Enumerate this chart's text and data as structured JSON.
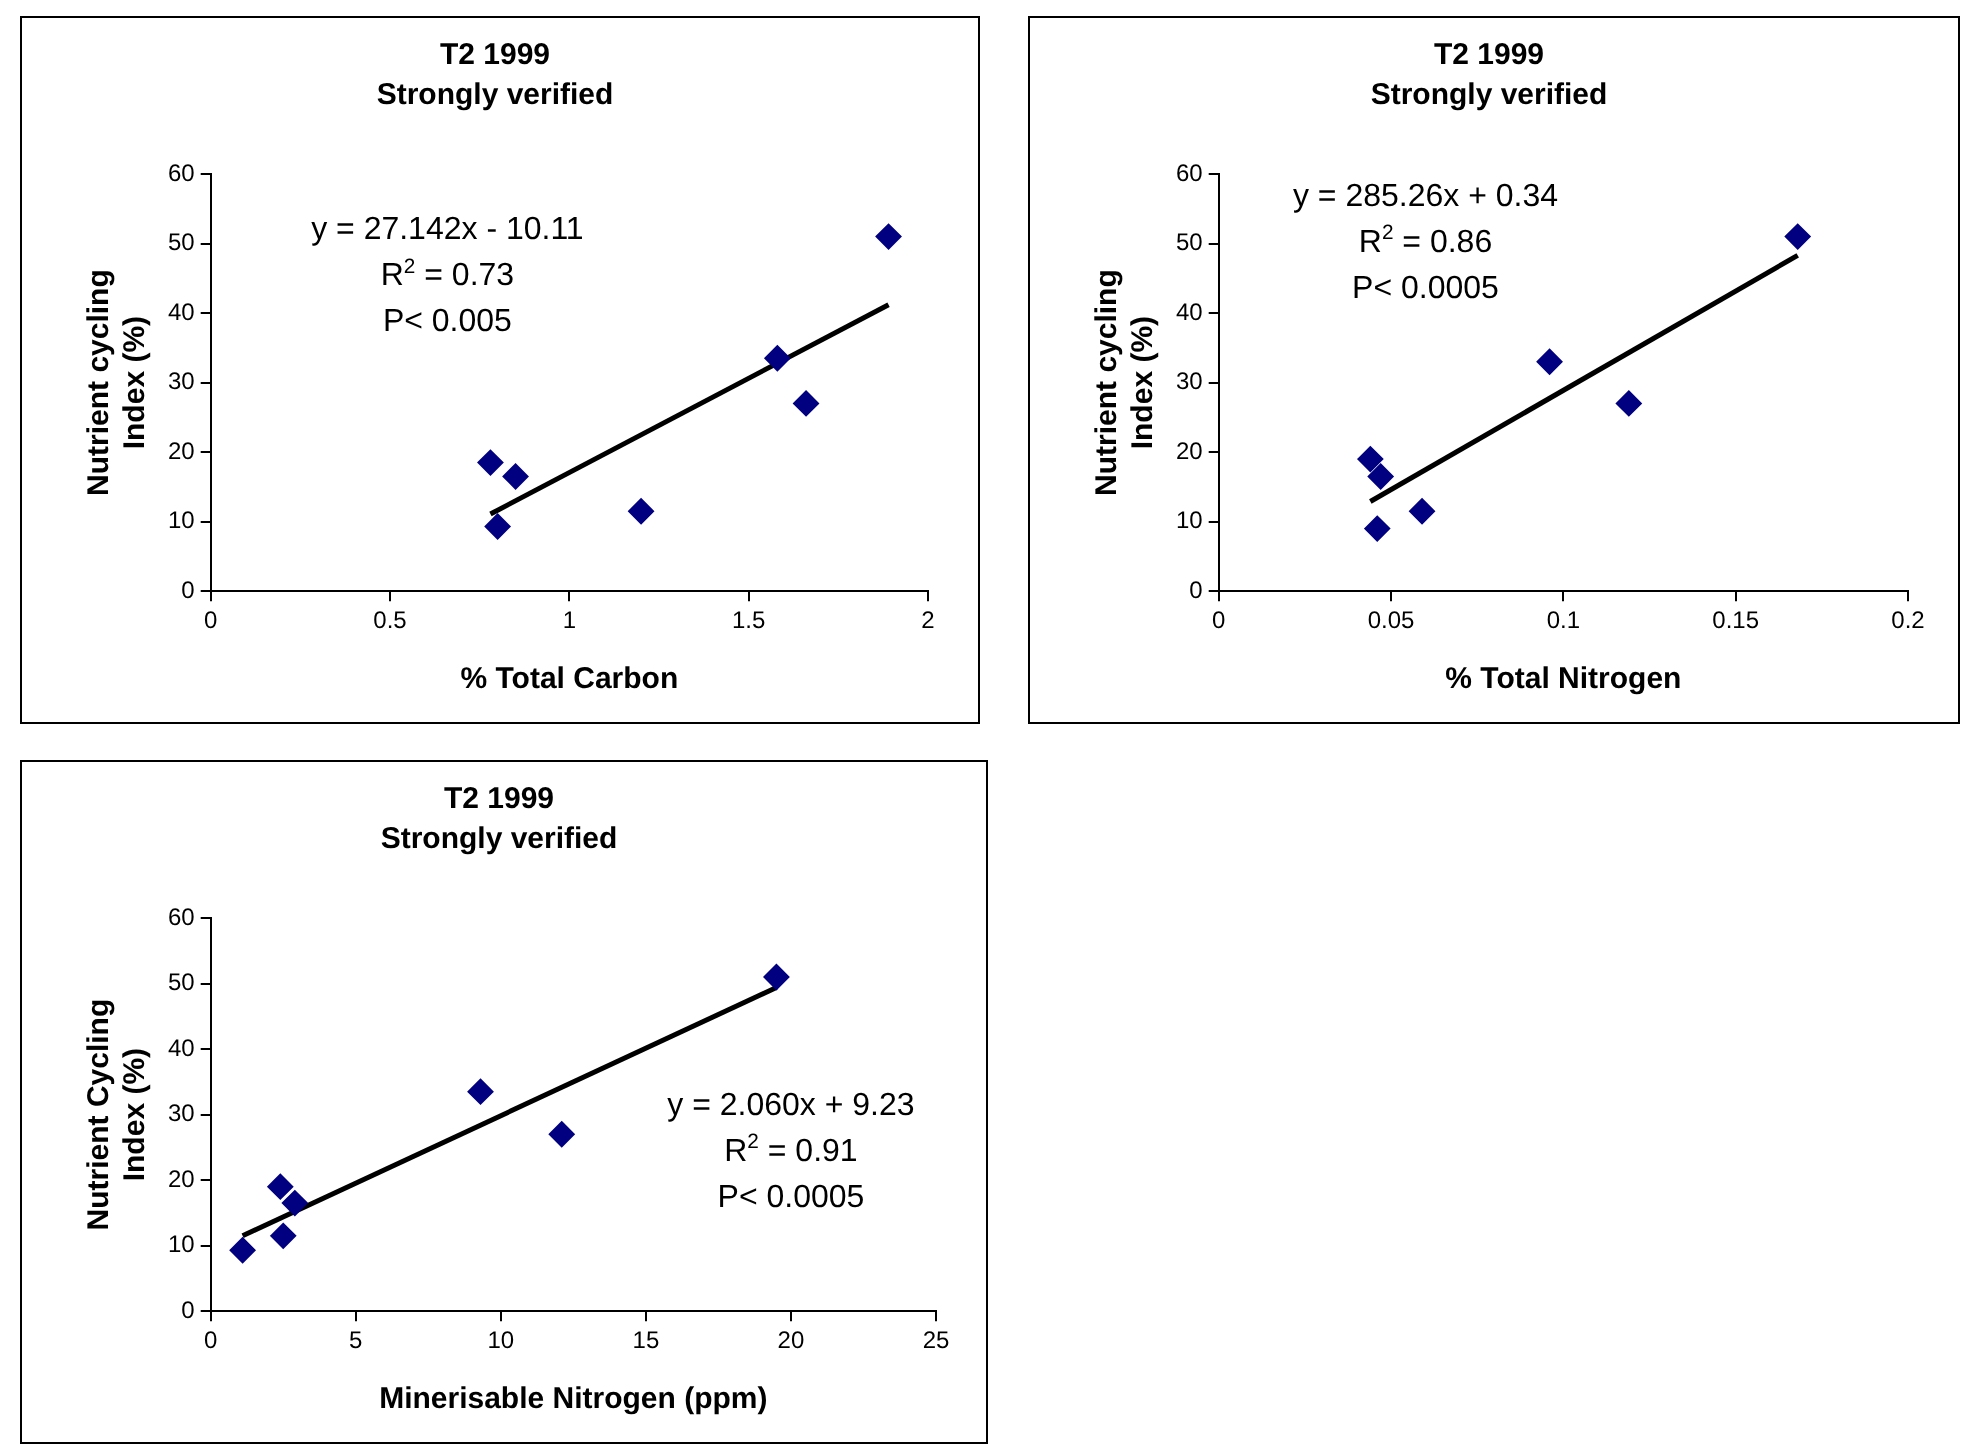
{
  "chart_data": [
    {
      "type": "scatter",
      "title": "T2 1999",
      "subtitle": "Strongly verified",
      "xlabel": "% Total Carbon",
      "ylabel": "Nutrient cycling Index (%)",
      "annotations": [
        "y = 27.142x - 10.11",
        "R$^{2}$ = 0.73",
        "P< 0.005"
      ],
      "marker": "diamond",
      "grid": false,
      "legend": false,
      "xlim": [
        0,
        2
      ],
      "xticks": [
        0,
        0.5,
        1,
        1.5,
        2
      ],
      "ylim": [
        0,
        60
      ],
      "yticks": [
        0,
        10,
        20,
        30,
        40,
        50,
        60
      ],
      "series": [
        {
          "color": "#000080",
          "x": [
            0.78,
            0.8,
            0.85,
            1.2,
            1.58,
            1.66,
            1.89
          ],
          "values": [
            18.5,
            9.3,
            16.5,
            11.5,
            33.5,
            27,
            51
          ]
        },
        {
          "type": "line",
          "color": "#000000",
          "marker": "none",
          "x": [
            0.78,
            1.89
          ],
          "values": [
            11.1,
            41.2
          ]
        }
      ]
    },
    {
      "type": "scatter",
      "title": "T2 1999",
      "subtitle": "Strongly verified",
      "xlabel": "% Total Nitrogen",
      "ylabel": "Nutrient cycling Index (%)",
      "annotations": [
        "y = 285.26x + 0.34",
        "R$^{2}$ = 0.86",
        "P< 0.0005"
      ],
      "marker": "diamond",
      "grid": false,
      "legend": false,
      "xlim": [
        0,
        0.2
      ],
      "xticks": [
        0,
        0.05,
        0.1,
        0.15,
        0.2
      ],
      "ylim": [
        0,
        60
      ],
      "yticks": [
        0,
        10,
        20,
        30,
        40,
        50,
        60
      ],
      "series": [
        {
          "color": "#000080",
          "x": [
            0.044,
            0.046,
            0.047,
            0.059,
            0.096,
            0.119,
            0.168
          ],
          "values": [
            19,
            9,
            16.5,
            11.5,
            33,
            27,
            51
          ]
        },
        {
          "type": "line",
          "color": "#000000",
          "marker": "none",
          "x": [
            0.044,
            0.168
          ],
          "values": [
            12.9,
            48.3
          ]
        }
      ]
    },
    {
      "type": "scatter",
      "title": "T2 1999",
      "subtitle": "Strongly verified",
      "xlabel": "Minerisable Nitrogen (ppm)",
      "ylabel": "Nutrient Cycling Index (%)",
      "annotations": [
        "y = 2.060x + 9.23",
        "R$^{2}$ = 0.91",
        "P< 0.0005"
      ],
      "marker": "diamond",
      "grid": false,
      "legend": false,
      "xlim": [
        0,
        25
      ],
      "xticks": [
        0,
        5,
        10,
        15,
        20,
        25
      ],
      "ylim": [
        0,
        60
      ],
      "yticks": [
        0,
        10,
        20,
        30,
        40,
        50,
        60
      ],
      "series": [
        {
          "color": "#000080",
          "x": [
            1.1,
            2.4,
            2.5,
            2.9,
            9.3,
            12.1,
            19.5
          ],
          "values": [
            9.3,
            19,
            11.5,
            16.5,
            33.5,
            27,
            51
          ]
        },
        {
          "type": "line",
          "color": "#000000",
          "marker": "none",
          "x": [
            1.1,
            19.5
          ],
          "values": [
            11.5,
            49.4
          ]
        }
      ]
    }
  ]
}
